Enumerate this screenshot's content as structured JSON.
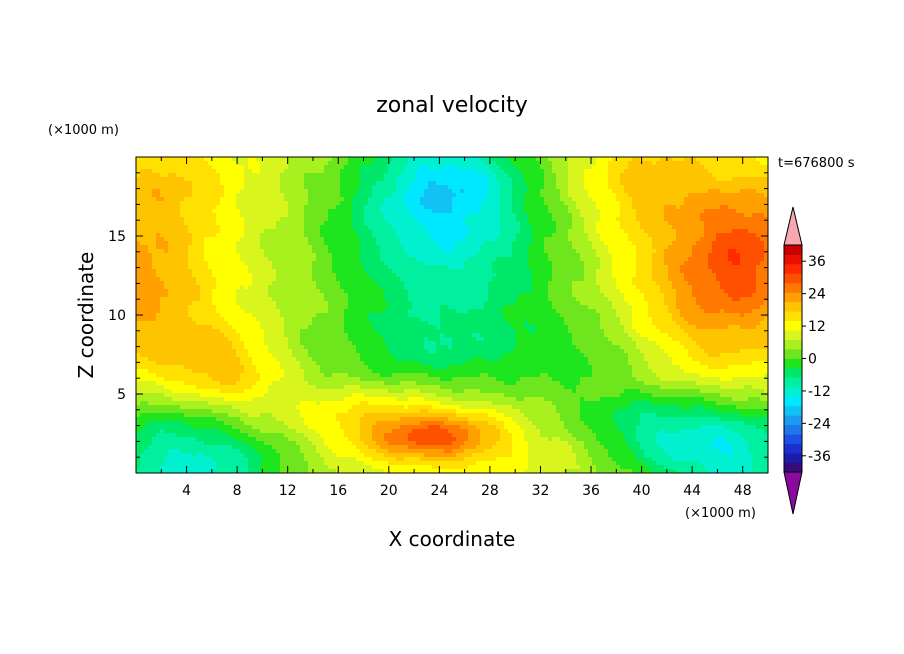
{
  "chart_data": {
    "type": "heatmap",
    "title": "zonal velocity",
    "xlabel": "X coordinate",
    "ylabel": "Z coordinate",
    "x_unit": "(×1000 m)",
    "y_unit": "(×1000 m)",
    "time_label": "t=676800 s",
    "xlim": [
      0,
      50
    ],
    "ylim": [
      0,
      20
    ],
    "x_ticks": [
      4,
      8,
      12,
      16,
      20,
      24,
      28,
      32,
      36,
      40,
      44,
      48
    ],
    "y_ticks": [
      5,
      10,
      15
    ],
    "colorbar": {
      "levels": [
        -42,
        -39,
        -36,
        -33,
        -30,
        -27,
        -24,
        -21,
        -18,
        -15,
        -12,
        -9,
        -6,
        -3,
        0,
        3,
        6,
        9,
        12,
        15,
        18,
        21,
        24,
        27,
        30,
        33,
        36,
        39,
        42
      ],
      "colors": [
        "#3a0a7a",
        "#1c1ca8",
        "#1e2fd0",
        "#1e50e6",
        "#1f78ea",
        "#1a9cf0",
        "#13c2f4",
        "#00e8ff",
        "#00f0d0",
        "#00f0a0",
        "#00e86a",
        "#1ee61e",
        "#6ee61e",
        "#a8f01e",
        "#d8f51e",
        "#ffff00",
        "#ffe000",
        "#ffc400",
        "#ffa000",
        "#ff7800",
        "#ff5000",
        "#ff2a00",
        "#e81000",
        "#c80000"
      ],
      "tick_labels": [
        "36",
        "24",
        "12",
        "0",
        "-12",
        "-24",
        "-36"
      ],
      "tick_values": [
        36,
        24,
        12,
        0,
        -12,
        -24,
        -36
      ],
      "over_color": "#f5a8b0",
      "under_color": "#8a0aa0"
    }
  }
}
